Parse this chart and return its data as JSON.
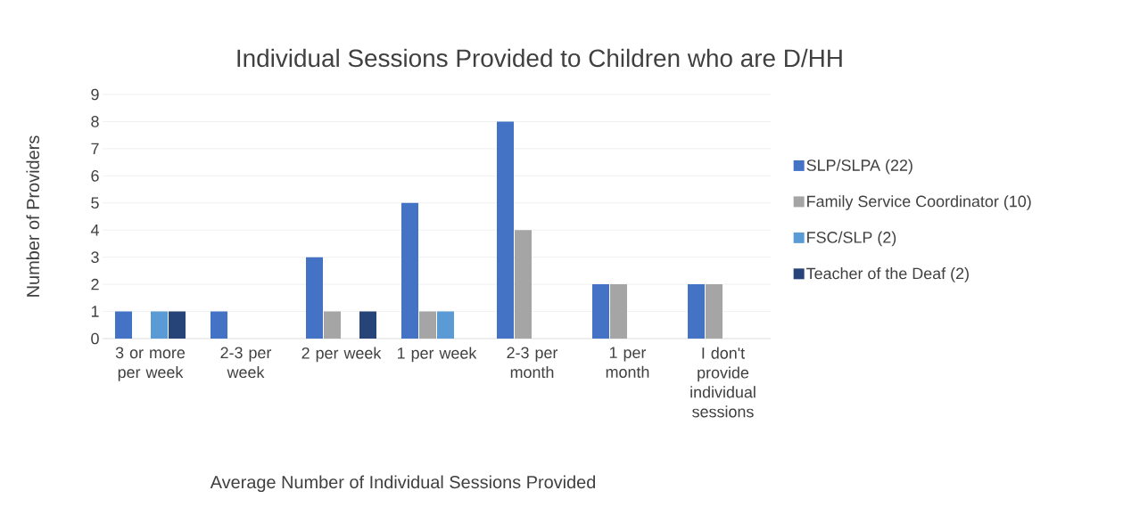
{
  "chart_data": {
    "type": "bar",
    "title": "Individual Sessions Provided to Children who are D/HH",
    "xlabel": "Average Number of Individual Sessions Provided",
    "ylabel": "Number of Providers",
    "categories": [
      "3 or more per week",
      "2-3 per week",
      "2 per week",
      "1 per week",
      "2-3 per month",
      "1 per month",
      "I don't provide individual sessions"
    ],
    "series": [
      {
        "name": "SLP/SLPA (22)",
        "color": "#4472c4",
        "values": [
          1,
          1,
          3,
          5,
          8,
          2,
          2
        ]
      },
      {
        "name": "Family Service Coordinator (10)",
        "color": "#a5a5a5",
        "values": [
          null,
          null,
          1,
          1,
          4,
          2,
          2
        ]
      },
      {
        "name": "FSC/SLP (2)",
        "color": "#5b9bd5",
        "values": [
          1,
          null,
          null,
          1,
          null,
          null,
          null
        ]
      },
      {
        "name": "Teacher of the Deaf (2)",
        "color": "#264478",
        "values": [
          1,
          null,
          1,
          null,
          null,
          null,
          null
        ]
      }
    ],
    "ylim": [
      0,
      9
    ],
    "yticks": [
      0,
      1,
      2,
      3,
      4,
      5,
      6,
      7,
      8,
      9
    ],
    "grid": "y",
    "legend": "right"
  }
}
